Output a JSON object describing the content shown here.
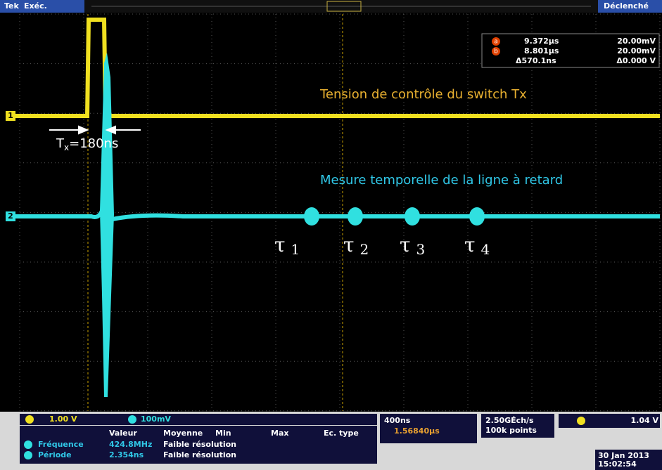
{
  "top_bar": {
    "brand": "Tek",
    "mode": "Exéc.",
    "status": "Déclenché"
  },
  "cursors": {
    "a_icon": "a",
    "b_icon": "b",
    "a_time": "9.372µs",
    "a_volt": "20.00mV",
    "b_time": "8.801µs",
    "b_volt": "20.00mV",
    "delta_time": "Δ570.1ns",
    "delta_volt": "Δ0.000 V"
  },
  "channel_markers": [
    "1",
    "2"
  ],
  "annotations": {
    "yellow_label": "Tension de contrôle du switch Tx",
    "tx_symbol": "T",
    "tx_subscript": "x",
    "tx_value": "=180ns",
    "cyan_label": "Mesure temporelle de la ligne à retard",
    "taus": [
      {
        "symbol": "τ",
        "index": "1"
      },
      {
        "symbol": "τ",
        "index": "2"
      },
      {
        "symbol": "τ",
        "index": "3"
      },
      {
        "symbol": "τ",
        "index": "4"
      }
    ]
  },
  "bottom": {
    "ch1_scale": "1.00 V",
    "ch2_scale": "100mV",
    "timebase": "400ns",
    "trigger_pos": "1.56840µs",
    "sample_rate": "2.50GÉch/s",
    "record": "100k points",
    "trigger_level": "1.04 V",
    "date": "30 Jan 2013",
    "time": "15:02:54"
  },
  "measurements": {
    "headers": [
      "Valeur",
      "Moyenne",
      "Min",
      "Max",
      "Ec. type"
    ],
    "rows": [
      [
        "Fréquence",
        "424.8MHz",
        "Faible résolution"
      ],
      [
        "Période",
        "2.354ns",
        "Faible résolution"
      ]
    ]
  }
}
